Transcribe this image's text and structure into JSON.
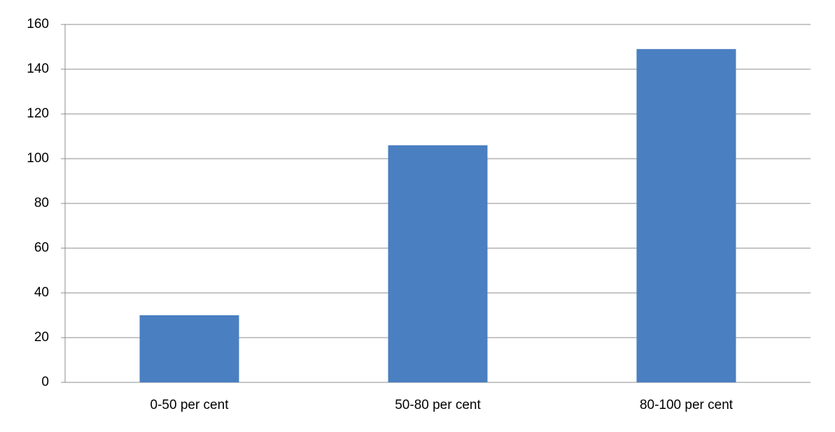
{
  "chart_data": {
    "type": "bar",
    "categories": [
      "0-50 per cent",
      "50-80 per cent",
      "80-100 per cent"
    ],
    "values": [
      30,
      106,
      149
    ],
    "color": "#4a7fc1",
    "ylim": [
      0,
      160
    ],
    "yticks": [
      0,
      20,
      40,
      60,
      80,
      100,
      120,
      140,
      160
    ],
    "grid": true
  }
}
